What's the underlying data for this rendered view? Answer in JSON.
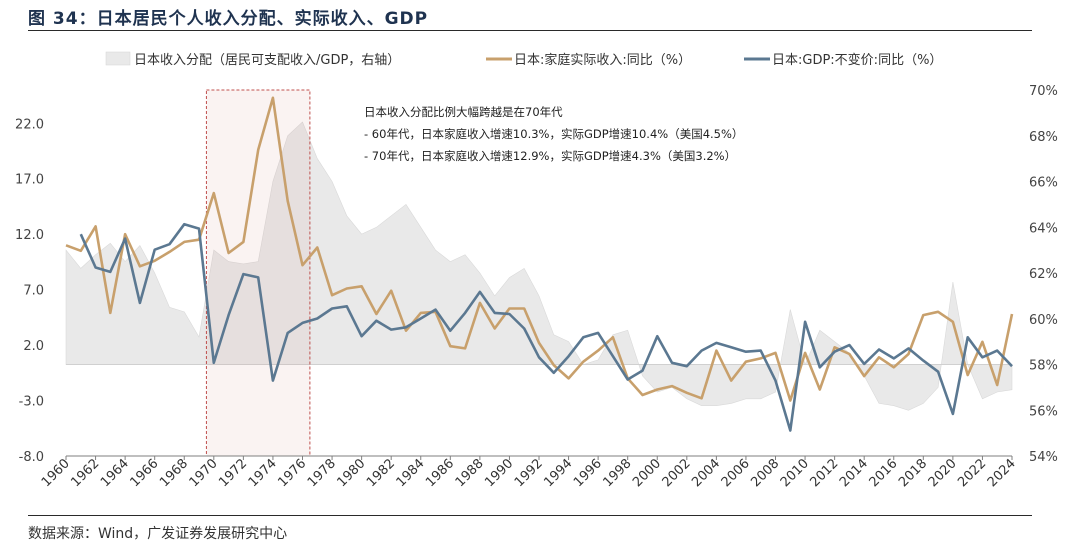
{
  "figure": {
    "title": "图 34：日本居民个人收入分配、实际收入、GDP",
    "source": "数据来源：Wind，广发证券发展研究中心"
  },
  "chart_data": {
    "type": "line",
    "legend": {
      "placement": "top",
      "items": [
        {
          "name": "日本收入分配（居民可支配收入/GDP，右轴）",
          "kind": "area",
          "color": "#e9e9e9"
        },
        {
          "name": "日本:家庭实际收入:同比（%）",
          "kind": "line",
          "color": "#c8a06c"
        },
        {
          "name": "日本:GDP:不变价:同比（%）",
          "kind": "line",
          "color": "#5b7891"
        }
      ]
    },
    "annotation": {
      "lines": [
        "日本收入分配比例大幅跨越是在70年代",
        "- 60年代，日本家庭收入增速10.3%，实际GDP增速10.4%（美国4.5%）",
        "- 70年代，日本家庭收入增速12.9%，实际GDP增速4.3%（美国3.2%）"
      ],
      "highlight_years": [
        1969.5,
        1976.5
      ]
    },
    "x_ticks": [
      "1960",
      "1962",
      "1964",
      "1966",
      "1968",
      "1970",
      "1972",
      "1974",
      "1976",
      "1978",
      "1980",
      "1982",
      "1984",
      "1986",
      "1988",
      "1990",
      "1992",
      "1994",
      "1996",
      "1998",
      "2000",
      "2002",
      "2004",
      "2006",
      "2008",
      "2010",
      "2012",
      "2014",
      "2016",
      "2018",
      "2020",
      "2022",
      "2024"
    ],
    "x_range": [
      1960,
      2024
    ],
    "y_left": {
      "ticks": [
        "22.0",
        "17.0",
        "12.0",
        "7.0",
        "2.0",
        "-3.0",
        "-8.0"
      ],
      "range": [
        -8,
        22
      ]
    },
    "y_right": {
      "ticks": [
        "70%",
        "68%",
        "66%",
        "64%",
        "62%",
        "60%",
        "58%",
        "56%",
        "54%"
      ],
      "range": [
        54,
        70
      ]
    },
    "x": [
      1960,
      1961,
      1962,
      1963,
      1964,
      1965,
      1966,
      1967,
      1968,
      1969,
      1970,
      1971,
      1972,
      1973,
      1974,
      1975,
      1976,
      1977,
      1978,
      1979,
      1980,
      1981,
      1982,
      1983,
      1984,
      1985,
      1986,
      1987,
      1988,
      1989,
      1990,
      1991,
      1992,
      1993,
      1994,
      1995,
      1996,
      1997,
      1998,
      1999,
      2000,
      2001,
      2002,
      2003,
      2004,
      2005,
      2006,
      2007,
      2008,
      2009,
      2010,
      2011,
      2012,
      2013,
      2014,
      2015,
      2016,
      2017,
      2018,
      2019,
      2020,
      2021,
      2022,
      2023,
      2024
    ],
    "series": [
      {
        "name": "日本收入分配（居民可支配收入/GDP，右轴）",
        "axis": "right",
        "values": [
          63.0,
          62.2,
          62.8,
          63.3,
          62.5,
          63.2,
          62.0,
          60.5,
          60.3,
          59.2,
          63.0,
          62.5,
          62.4,
          62.5,
          66.0,
          68.0,
          68.6,
          67.0,
          66.0,
          64.5,
          63.7,
          64.0,
          64.5,
          65.0,
          64.0,
          63.0,
          62.5,
          62.8,
          62.0,
          61.0,
          61.8,
          62.2,
          61.0,
          59.3,
          59.0,
          58.0,
          58.2,
          59.3,
          59.5,
          57.5,
          56.8,
          57.0,
          56.5,
          56.2,
          56.2,
          56.3,
          56.5,
          56.5,
          56.8,
          60.4,
          58.0,
          59.5,
          59.0,
          58.5,
          57.5,
          56.3,
          56.2,
          56.0,
          56.3,
          57.0,
          61.6,
          58.0,
          56.5,
          56.8,
          56.9
        ]
      },
      {
        "name": "日本:家庭实际收入:同比（%）",
        "axis": "left",
        "values": [
          11.0,
          10.5,
          12.7,
          4.9,
          12.0,
          9.1,
          9.6,
          10.4,
          11.3,
          11.5,
          15.7,
          10.3,
          11.3,
          19.6,
          24.3,
          15.0,
          9.2,
          10.8,
          6.5,
          7.1,
          7.3,
          4.8,
          6.9,
          3.3,
          4.9,
          5.0,
          1.9,
          1.7,
          5.8,
          3.5,
          5.3,
          5.3,
          2.2,
          0.2,
          -1.0,
          0.5,
          1.5,
          2.7,
          -1.0,
          -2.5,
          -2.0,
          -1.7,
          -2.3,
          -2.8,
          1.5,
          -1.2,
          0.5,
          0.8,
          1.3,
          -3.0,
          1.3,
          -2.0,
          1.8,
          1.2,
          -0.8,
          0.9,
          0.0,
          1.2,
          4.7,
          5.0,
          4.1,
          -0.7,
          2.3,
          -1.6,
          4.8
        ]
      },
      {
        "name": "日本:GDP:不变价:同比（%）",
        "axis": "left",
        "values": [
          null,
          12.0,
          9.0,
          8.6,
          11.6,
          5.8,
          10.6,
          11.1,
          12.9,
          12.5,
          0.4,
          4.7,
          8.4,
          8.1,
          -1.2,
          3.1,
          4.0,
          4.4,
          5.3,
          5.5,
          2.8,
          4.2,
          3.4,
          3.6,
          4.4,
          5.2,
          3.3,
          4.9,
          6.8,
          4.9,
          4.8,
          3.5,
          0.9,
          -0.5,
          1.0,
          2.7,
          3.1,
          1.0,
          -1.1,
          -0.3,
          2.8,
          0.4,
          0.1,
          1.5,
          2.2,
          1.8,
          1.4,
          1.5,
          -1.2,
          -5.7,
          4.1,
          0.0,
          1.4,
          2.0,
          0.3,
          1.6,
          0.8,
          1.7,
          0.6,
          -0.4,
          -4.2,
          2.7,
          0.9,
          1.5,
          0.1
        ]
      }
    ],
    "grid": false
  }
}
